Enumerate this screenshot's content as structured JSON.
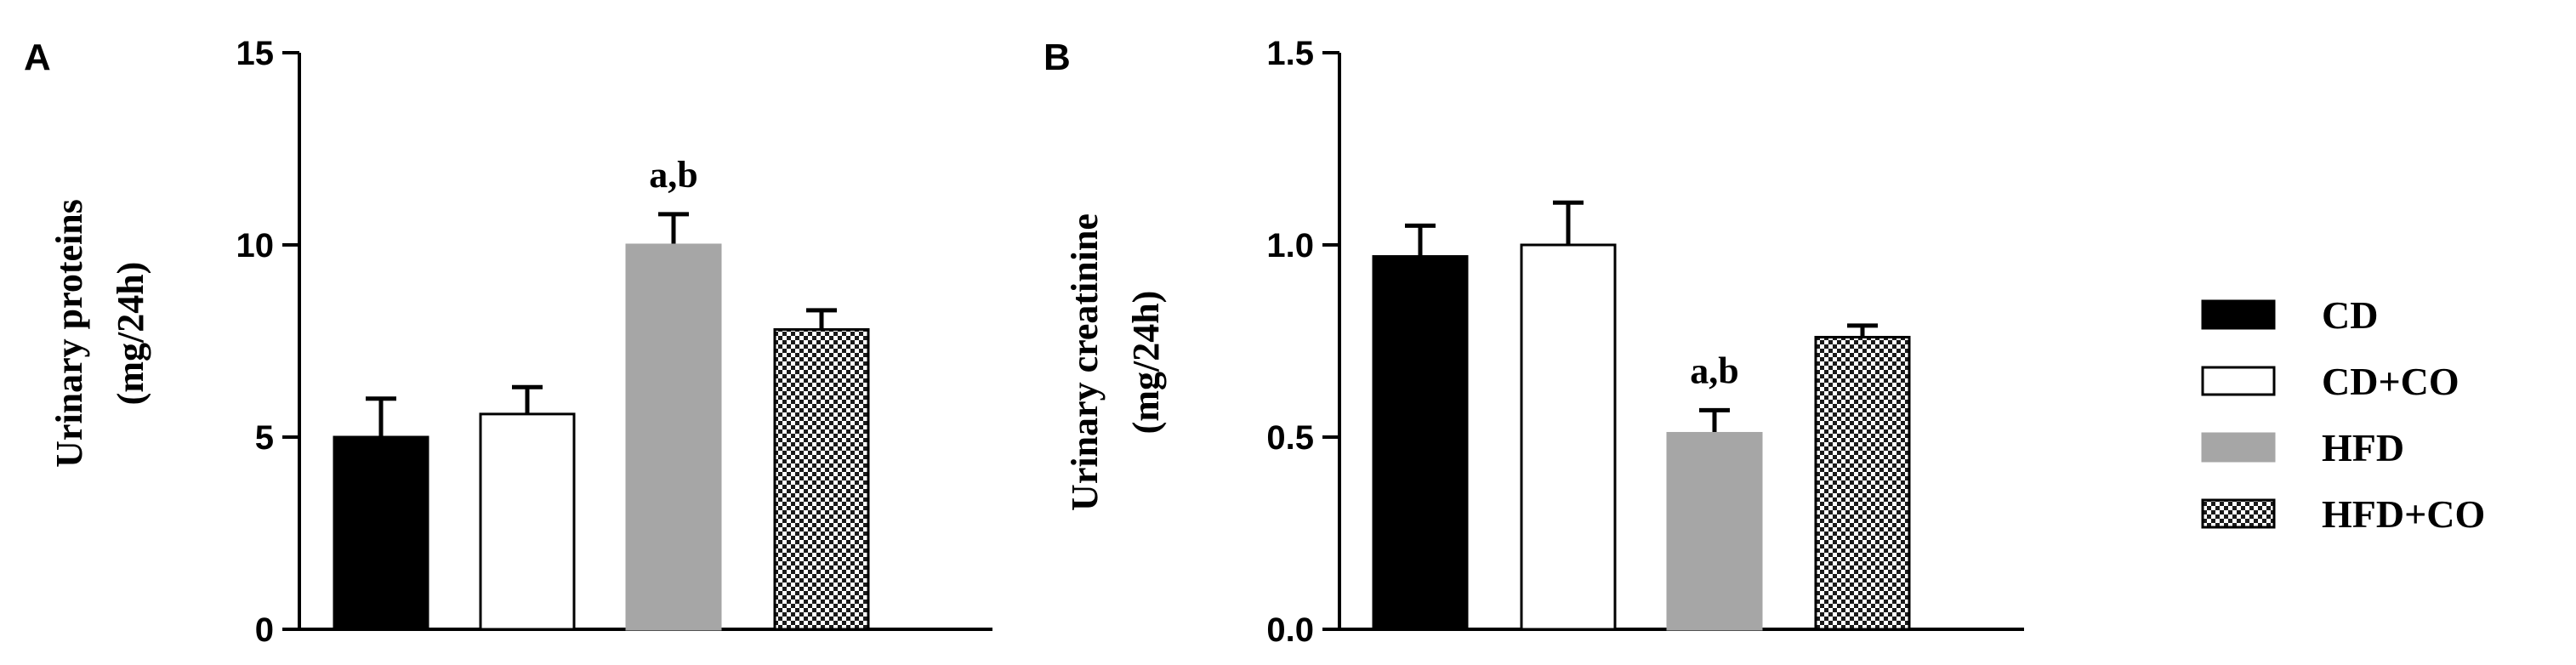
{
  "chart_data": [
    {
      "type": "bar",
      "panel_label": "A",
      "ylabel_line1": "Urinary proteins",
      "ylabel_line2": "(mg/24h)",
      "ylim": [
        0,
        15
      ],
      "yticks": [
        0,
        5,
        10,
        15
      ],
      "ytick_labels": [
        "0",
        "5",
        "10",
        "15"
      ],
      "categories": [
        "CD",
        "CD+CO",
        "HFD",
        "HFD+CO"
      ],
      "values": [
        5.0,
        5.6,
        10.0,
        7.8
      ],
      "errors": [
        1.0,
        0.7,
        0.8,
        0.5
      ],
      "annotations": [
        "",
        "",
        "a,b",
        ""
      ]
    },
    {
      "type": "bar",
      "panel_label": "B",
      "ylabel_line1": "Urinary creatinine",
      "ylabel_line2": "(mg/24h)",
      "ylim": [
        0,
        1.5
      ],
      "yticks": [
        0,
        0.5,
        1.0,
        1.5
      ],
      "ytick_labels": [
        "0.0",
        "0.5",
        "1.0",
        "1.5"
      ],
      "categories": [
        "CD",
        "CD+CO",
        "HFD",
        "HFD+CO"
      ],
      "values": [
        0.97,
        1.0,
        0.51,
        0.76
      ],
      "errors": [
        0.08,
        0.11,
        0.06,
        0.03
      ],
      "annotations": [
        "",
        "",
        "a,b",
        ""
      ]
    }
  ],
  "legend": {
    "placement": "right",
    "entries": [
      {
        "label": "CD",
        "fill": "black"
      },
      {
        "label": "CD+CO",
        "fill": "white"
      },
      {
        "label": "HFD",
        "fill": "gray"
      },
      {
        "label": "HFD+CO",
        "fill": "checker"
      }
    ]
  },
  "colors": {
    "CD": "#000000",
    "CD+CO": "#ffffff",
    "HFD": "#a6a6a6",
    "HFD+CO_pattern": "checkerboard black/white"
  }
}
